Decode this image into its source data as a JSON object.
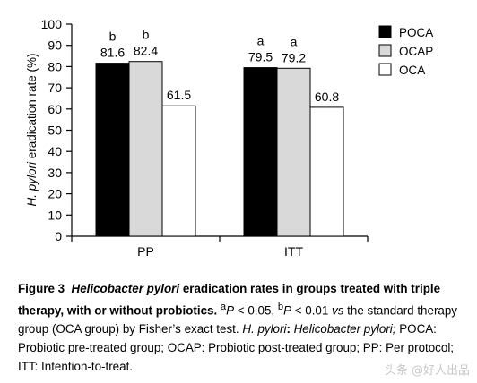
{
  "chart_data": {
    "type": "bar",
    "categories": [
      "PP",
      "ITT"
    ],
    "series": [
      {
        "name": "POCA",
        "values": [
          81.6,
          79.5
        ],
        "color": "#000000"
      },
      {
        "name": "OCAP",
        "values": [
          82.4,
          79.2
        ],
        "color": "#d9d9d9"
      },
      {
        "name": "OCA",
        "values": [
          61.5,
          60.8
        ],
        "color": "#ffffff"
      }
    ],
    "significance": [
      {
        "category": "PP",
        "series": [
          "POCA",
          "OCAP"
        ],
        "letter": "b"
      },
      {
        "category": "ITT",
        "series": [
          "POCA",
          "OCAP"
        ],
        "letter": "a"
      }
    ],
    "ylabel_italic": "H. pylori",
    "ylabel_rest": " eradication rate (%)",
    "ylim": [
      0,
      100
    ],
    "yticks": [
      0,
      10,
      20,
      30,
      40,
      50,
      60,
      70,
      80,
      90,
      100
    ],
    "grid": false,
    "legend_position": "top-right"
  },
  "caption": {
    "figure_label": "Figure 3",
    "title_italic": "Helicobacter pylori",
    "title_rest": " eradication rates in groups treated with triple therapy, with or without probiotics.",
    "sup_a": "a",
    "p_a": "P",
    "p_a_text": " < 0.05, ",
    "sup_b": "b",
    "p_b": "P",
    "p_b_text": " < 0.01 ",
    "vs": "vs",
    "text_1": " the standard therapy group (OCA group) by Fisher’s exact test. ",
    "hp_italic": "H. pylori",
    "colon": ": ",
    "hp_full_italic": "Helicobacter pylori;",
    "text_2": " POCA: Probiotic pre-treated group; OCAP: Probiotic post-treated group; PP: Per protocol; ITT: Intention-to-treat."
  },
  "watermark": "头条 @好人出品"
}
